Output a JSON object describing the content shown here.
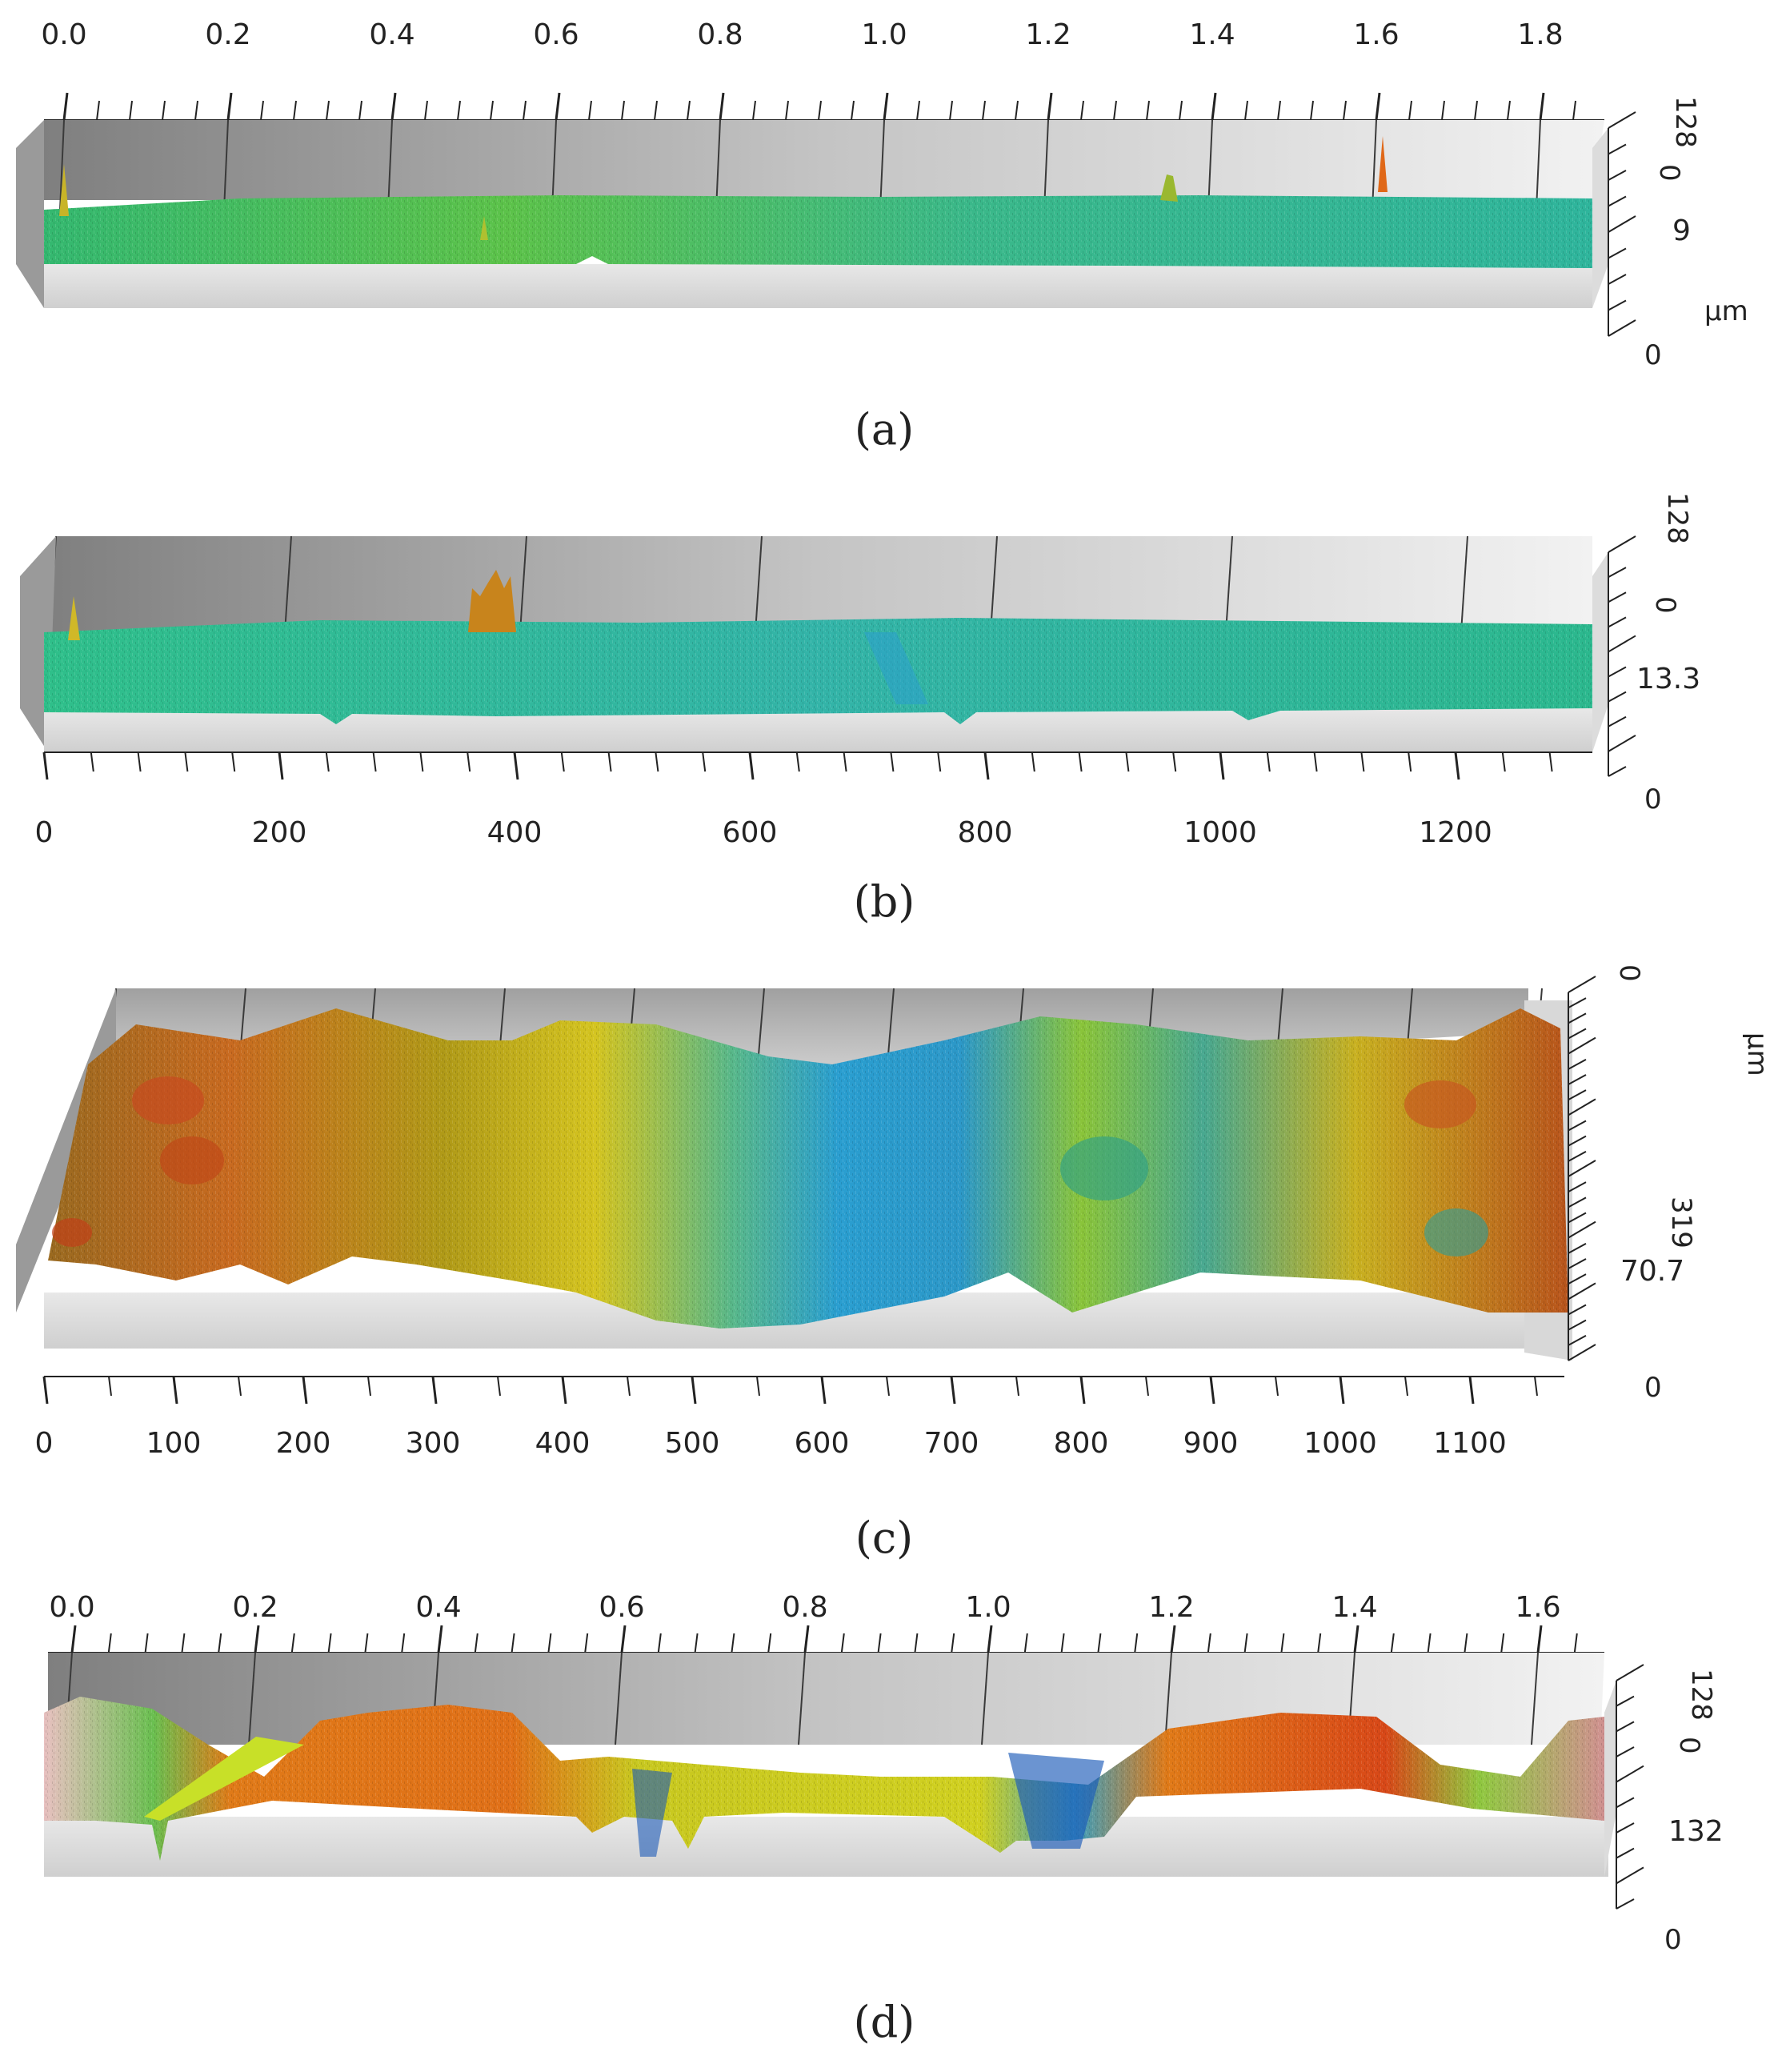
{
  "panels": [
    {
      "id": "a",
      "caption": "(a)",
      "scale_position": "top",
      "scale_labels": [
        "0.0",
        "0.2",
        "0.4",
        "0.6",
        "0.8",
        "1.0",
        "1.2",
        "1.4",
        "1.6",
        "1.8"
      ],
      "z_labels": [
        "128",
        "0",
        "9",
        "µm",
        "0"
      ]
    },
    {
      "id": "b",
      "caption": "(b)",
      "scale_position": "bottom",
      "scale_labels": [
        "0",
        "200",
        "400",
        "600",
        "800",
        "1000",
        "1200"
      ],
      "z_labels": [
        "128",
        "0",
        "13.3",
        "0"
      ]
    },
    {
      "id": "c",
      "caption": "(c)",
      "scale_position": "bottom",
      "scale_labels": [
        "0",
        "100",
        "200",
        "300",
        "400",
        "500",
        "600",
        "700",
        "800",
        "900",
        "1000",
        "1100"
      ],
      "z_labels": [
        "0",
        "µm",
        "319",
        "70.7",
        "0"
      ]
    },
    {
      "id": "d",
      "caption": "(d)",
      "scale_position": "top",
      "scale_labels": [
        "0.0",
        "0.2",
        "0.4",
        "0.6",
        "0.8",
        "1.0",
        "1.2",
        "1.4",
        "1.6"
      ],
      "z_labels": [
        "128",
        "0",
        "132",
        "0"
      ]
    }
  ],
  "colors": {
    "surface_green": "#3fbf6a",
    "surface_teal": "#2fb5a0",
    "surface_yellow": "#d8c020",
    "surface_orange": "#e07818",
    "surface_red": "#c84820",
    "surface_blue": "#1c7ac8",
    "backwall_dark": "#8a8a8a",
    "backwall_light": "#f0f0f0",
    "floor": "#d9d9d9"
  }
}
